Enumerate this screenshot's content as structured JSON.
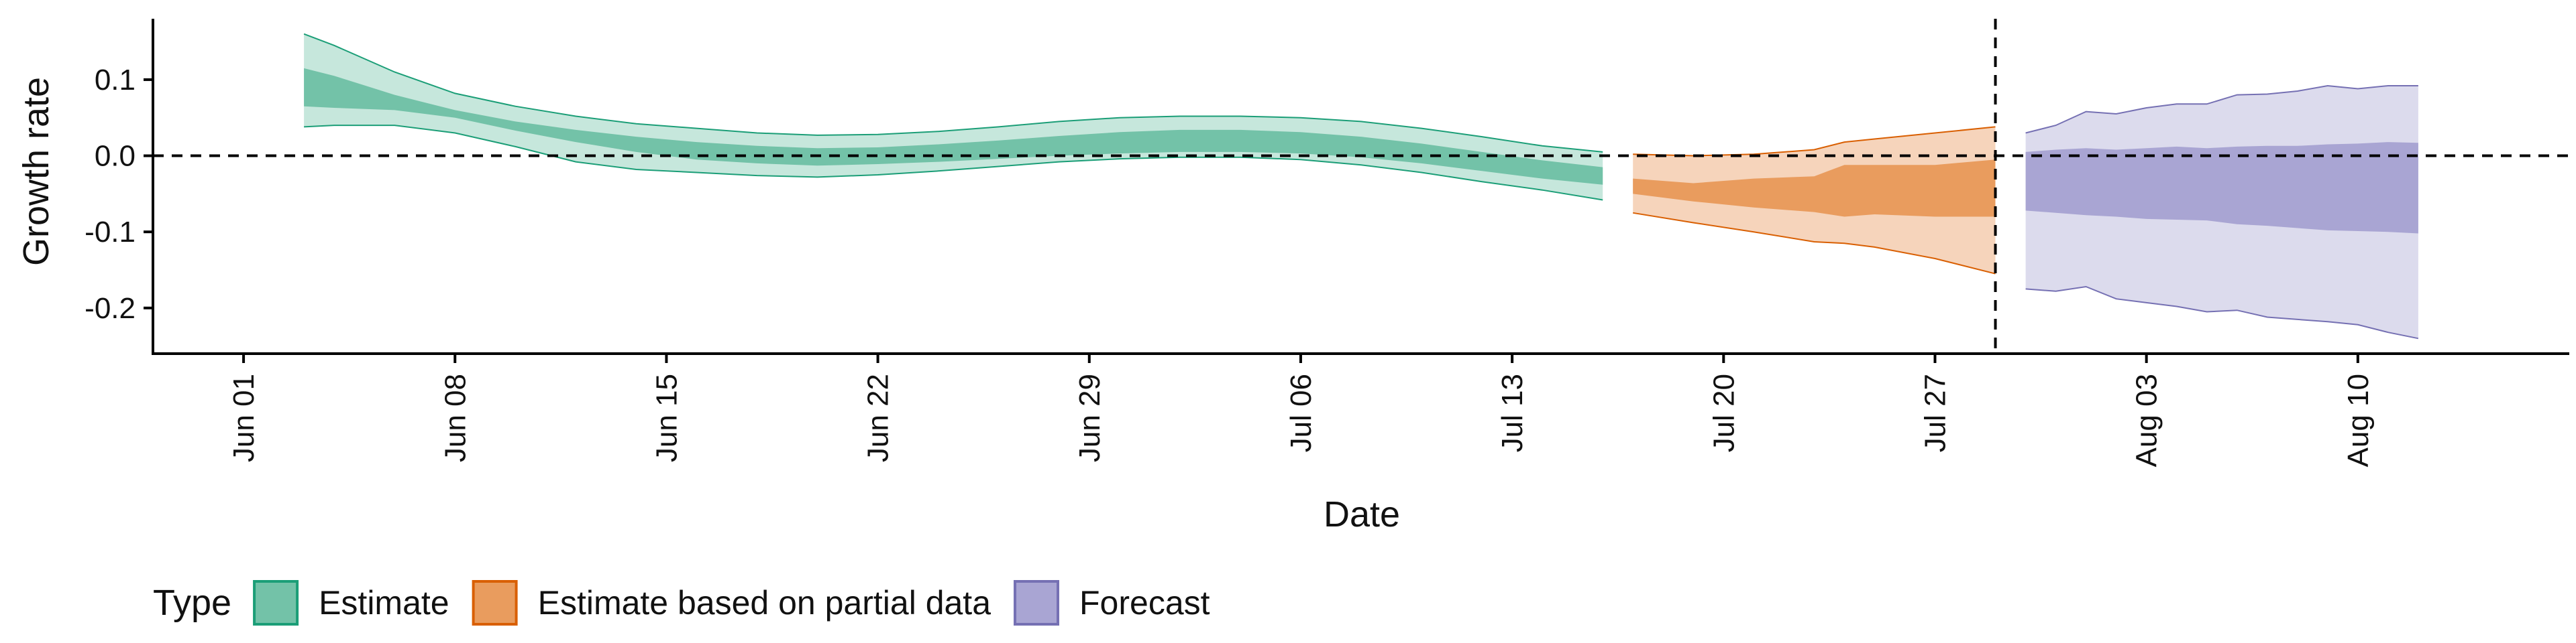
{
  "chart_data": {
    "type": "area",
    "xlabel": "Date",
    "ylabel": "Growth rate",
    "x_range": [
      "2020-05-29",
      "2020-08-17"
    ],
    "ylim": [
      -0.26,
      0.18
    ],
    "y_ticks": [
      0.1,
      0.0,
      -0.1,
      -0.2
    ],
    "y_tick_labels": [
      "0.1",
      "0.0",
      "-0.1",
      "-0.2"
    ],
    "x_ticks": [
      "2020-06-01",
      "2020-06-08",
      "2020-06-15",
      "2020-06-22",
      "2020-06-29",
      "2020-07-06",
      "2020-07-13",
      "2020-07-20",
      "2020-07-27",
      "2020-08-03",
      "2020-08-10"
    ],
    "x_tick_labels": [
      "Jun 01",
      "Jun 08",
      "Jun 15",
      "Jun 22",
      "Jun 29",
      "Jul 06",
      "Jul 13",
      "Jul 20",
      "Jul 27",
      "Aug 03",
      "Aug 10"
    ],
    "reference_lines": {
      "horizontal_y": 0.0,
      "vertical_x": "2020-07-29"
    },
    "grid": false,
    "legend": {
      "title": "Type",
      "position": "bottom-left",
      "entries": [
        "Estimate",
        "Estimate based on partial data",
        "Forecast"
      ]
    },
    "series": [
      {
        "name": "Estimate",
        "color": "#1b9e77",
        "inner_color": "#73c2a8",
        "outer_color": "#c6e7dc",
        "x": [
          "2020-06-03",
          "2020-06-04",
          "2020-06-06",
          "2020-06-08",
          "2020-06-10",
          "2020-06-12",
          "2020-06-14",
          "2020-06-16",
          "2020-06-18",
          "2020-06-20",
          "2020-06-22",
          "2020-06-24",
          "2020-06-26",
          "2020-06-28",
          "2020-06-30",
          "2020-07-02",
          "2020-07-04",
          "2020-07-06",
          "2020-07-08",
          "2020-07-10",
          "2020-07-12",
          "2020-07-14",
          "2020-07-16"
        ],
        "outer_upper": [
          0.16,
          0.145,
          0.11,
          0.082,
          0.065,
          0.052,
          0.042,
          0.036,
          0.03,
          0.027,
          0.028,
          0.032,
          0.038,
          0.045,
          0.05,
          0.052,
          0.052,
          0.05,
          0.045,
          0.036,
          0.025,
          0.013,
          0.005
        ],
        "inner_upper": [
          0.115,
          0.105,
          0.08,
          0.06,
          0.045,
          0.034,
          0.025,
          0.018,
          0.013,
          0.01,
          0.011,
          0.015,
          0.02,
          0.026,
          0.031,
          0.034,
          0.034,
          0.031,
          0.025,
          0.016,
          0.005,
          -0.006,
          -0.015
        ],
        "inner_lower": [
          0.065,
          0.063,
          0.06,
          0.05,
          0.033,
          0.018,
          0.005,
          -0.005,
          -0.01,
          -0.013,
          -0.011,
          -0.008,
          -0.004,
          0.0,
          0.003,
          0.005,
          0.005,
          0.003,
          -0.002,
          -0.01,
          -0.02,
          -0.03,
          -0.038
        ],
        "outer_lower": [
          0.038,
          0.04,
          0.04,
          0.03,
          0.012,
          -0.008,
          -0.018,
          -0.022,
          -0.026,
          -0.028,
          -0.025,
          -0.02,
          -0.014,
          -0.008,
          -0.004,
          -0.002,
          -0.002,
          -0.005,
          -0.012,
          -0.022,
          -0.034,
          -0.045,
          -0.058
        ]
      },
      {
        "name": "Estimate based on partial data",
        "color": "#d95f02",
        "inner_color": "#e99c5e",
        "outer_color": "#f6d4bb",
        "x": [
          "2020-07-17",
          "2020-07-19",
          "2020-07-21",
          "2020-07-23",
          "2020-07-24",
          "2020-07-25",
          "2020-07-27",
          "2020-07-29"
        ],
        "outer_upper": [
          0.002,
          0.0,
          0.002,
          0.008,
          0.018,
          0.022,
          0.03,
          0.038
        ],
        "inner_upper": [
          -0.03,
          -0.036,
          -0.03,
          -0.027,
          -0.012,
          -0.012,
          -0.012,
          -0.005
        ],
        "inner_lower": [
          -0.05,
          -0.06,
          -0.068,
          -0.074,
          -0.08,
          -0.077,
          -0.08,
          -0.08
        ],
        "outer_lower": [
          -0.075,
          -0.088,
          -0.1,
          -0.113,
          -0.115,
          -0.12,
          -0.135,
          -0.155
        ]
      },
      {
        "name": "Forecast",
        "color": "#7570b3",
        "inner_color": "#a9a5d3",
        "outer_color": "#dcdbed",
        "x": [
          "2020-07-30",
          "2020-07-31",
          "2020-08-01",
          "2020-08-02",
          "2020-08-03",
          "2020-08-04",
          "2020-08-05",
          "2020-08-06",
          "2020-08-07",
          "2020-08-08",
          "2020-08-09",
          "2020-08-10",
          "2020-08-11",
          "2020-08-12"
        ],
        "outer_upper": [
          0.03,
          0.04,
          0.058,
          0.055,
          0.063,
          0.068,
          0.068,
          0.08,
          0.081,
          0.085,
          0.092,
          0.088,
          0.092,
          0.092
        ],
        "inner_upper": [
          0.005,
          0.008,
          0.01,
          0.008,
          0.01,
          0.012,
          0.01,
          0.012,
          0.013,
          0.013,
          0.015,
          0.016,
          0.018,
          0.017
        ],
        "inner_lower": [
          -0.072,
          -0.075,
          -0.078,
          -0.08,
          -0.083,
          -0.084,
          -0.085,
          -0.09,
          -0.092,
          -0.095,
          -0.098,
          -0.099,
          -0.1,
          -0.102
        ],
        "outer_lower": [
          -0.175,
          -0.178,
          -0.172,
          -0.188,
          -0.193,
          -0.198,
          -0.205,
          -0.203,
          -0.212,
          -0.215,
          -0.218,
          -0.222,
          -0.232,
          -0.24
        ]
      }
    ]
  }
}
